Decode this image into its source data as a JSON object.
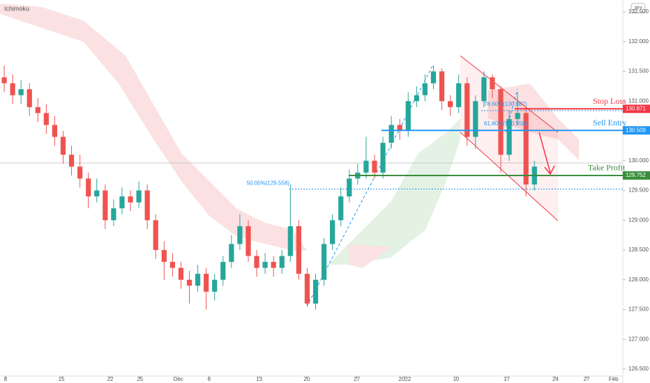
{
  "chart_data": {
    "type": "candlestick",
    "title": "Ichimoku",
    "currency": "JPY",
    "open": [
      131.4,
      131.3,
      131.1,
      131.2,
      130.9,
      130.8,
      130.6,
      130.4,
      130.1,
      129.9,
      129.7,
      129.4,
      129.5,
      129.0,
      129.2,
      129.4,
      129.3,
      129.5,
      129.0,
      128.5,
      128.3,
      128.2,
      128.0,
      127.9,
      128.1,
      127.8,
      128.0,
      128.3,
      128.6,
      128.9,
      128.4,
      128.2,
      128.3,
      128.2,
      128.4,
      128.9,
      128.1,
      127.6,
      128.0,
      128.6,
      129.0,
      129.4,
      129.7,
      129.8,
      130.0,
      129.8,
      130.3,
      130.6,
      130.5,
      131.0,
      131.1,
      131.3,
      131.5,
      131.0,
      130.9,
      131.3,
      130.4,
      131.0,
      131.4,
      131.2,
      130.1,
      130.7,
      130.8,
      129.6
    ],
    "high": [
      131.6,
      131.45,
      131.35,
      131.3,
      131.05,
      130.95,
      130.75,
      130.5,
      130.25,
      130.1,
      129.8,
      129.7,
      129.6,
      129.35,
      129.55,
      129.5,
      129.65,
      129.6,
      129.1,
      128.65,
      128.45,
      128.3,
      128.15,
      128.25,
      128.2,
      128.1,
      128.4,
      128.75,
      129.1,
      129.0,
      128.5,
      128.45,
      128.4,
      128.5,
      129.6,
      129.0,
      128.2,
      128.1,
      128.7,
      129.1,
      129.55,
      129.85,
      129.95,
      130.4,
      130.1,
      130.4,
      130.75,
      130.7,
      131.15,
      131.25,
      131.45,
      131.6,
      131.55,
      131.1,
      131.45,
      131.4,
      131.1,
      131.5,
      131.45,
      131.25,
      130.85,
      131.15,
      130.9,
      130.0
    ],
    "low": [
      131.15,
      130.95,
      130.95,
      130.75,
      130.65,
      130.45,
      130.25,
      129.95,
      129.75,
      129.55,
      129.2,
      129.3,
      128.85,
      128.9,
      129.1,
      129.15,
      129.2,
      128.85,
      128.35,
      128.0,
      128.05,
      127.85,
      127.6,
      127.8,
      127.5,
      127.65,
      127.9,
      128.2,
      128.5,
      128.3,
      128.05,
      128.1,
      128.05,
      128.1,
      128.3,
      128.0,
      127.55,
      127.5,
      127.9,
      128.5,
      128.9,
      129.3,
      129.6,
      129.7,
      129.7,
      129.7,
      130.2,
      130.35,
      130.4,
      130.9,
      131.0,
      131.2,
      130.85,
      130.75,
      130.8,
      130.25,
      130.2,
      130.9,
      131.05,
      129.8,
      130.0,
      130.6,
      129.4,
      129.5
    ],
    "close": [
      131.3,
      131.1,
      131.2,
      130.9,
      130.8,
      130.6,
      130.4,
      130.1,
      129.9,
      129.7,
      129.4,
      129.5,
      129.0,
      129.2,
      129.4,
      129.3,
      129.5,
      129.0,
      128.5,
      128.3,
      128.2,
      128.0,
      127.9,
      128.1,
      127.8,
      128.0,
      128.3,
      128.6,
      128.9,
      128.4,
      128.2,
      128.3,
      128.2,
      128.4,
      128.9,
      128.1,
      127.6,
      128.0,
      128.6,
      129.0,
      129.4,
      129.7,
      129.8,
      130.0,
      129.8,
      130.3,
      130.6,
      130.5,
      131.0,
      131.1,
      131.3,
      131.5,
      131.0,
      130.9,
      131.3,
      130.4,
      131.0,
      131.4,
      131.2,
      130.1,
      130.7,
      130.8,
      129.6,
      129.9
    ],
    "up_color": "#26a69a",
    "down_color": "#ef5350",
    "xlim": [
      0,
      74
    ],
    "xticks": [
      {
        "value": 0.66,
        "label": "8"
      },
      {
        "value": 7.3,
        "label": "15"
      },
      {
        "value": 13.1,
        "label": "22"
      },
      {
        "value": 16.65,
        "label": "25"
      },
      {
        "value": 21.2,
        "label": "Dec"
      },
      {
        "value": 24.85,
        "label": "6"
      },
      {
        "value": 30.8,
        "label": "13"
      },
      {
        "value": 36.45,
        "label": "20"
      },
      {
        "value": 42.4,
        "label": "27"
      },
      {
        "value": 48.1,
        "label": "2022"
      },
      {
        "value": 54.2,
        "label": "10"
      },
      {
        "value": 60.2,
        "label": "17"
      },
      {
        "value": 66,
        "label": "24"
      },
      {
        "value": 69.7,
        "label": "27"
      },
      {
        "value": 72.9,
        "label": "Feb"
      }
    ],
    "ylim": [
      126.383,
      132.699
    ],
    "yticks": [
      {
        "value": 132.5,
        "label": "132.500"
      },
      {
        "value": 132,
        "label": "132.000"
      },
      {
        "value": 131.5,
        "label": "131.500"
      },
      {
        "value": 131,
        "label": "131.000"
      },
      {
        "value": 130,
        "label": "130.000"
      },
      {
        "value": 129.5,
        "label": "129.500"
      },
      {
        "value": 129,
        "label": "129.000"
      },
      {
        "value": 128.5,
        "label": "128.500"
      },
      {
        "value": 128,
        "label": "128.000"
      },
      {
        "value": 127.5,
        "label": "127.500"
      },
      {
        "value": 127,
        "label": "127.000"
      },
      {
        "value": 126.5,
        "label": "126.500"
      }
    ],
    "levels": [
      {
        "label": "Stop Loss",
        "value": 130.871,
        "color": "#f23645"
      },
      {
        "label": "Sell Entry",
        "value": 130.509,
        "color": "#2196f3"
      },
      {
        "label": "Take Profit",
        "value": 129.752,
        "color": "#388e3c"
      }
    ],
    "fib_levels": [
      {
        "label": "50.00%(129.558)",
        "value": 129.558
      },
      {
        "label": "78.60%(130.887)",
        "value": 130.887
      },
      {
        "label": "61.80%(130.558)",
        "value": 130.558
      }
    ]
  }
}
